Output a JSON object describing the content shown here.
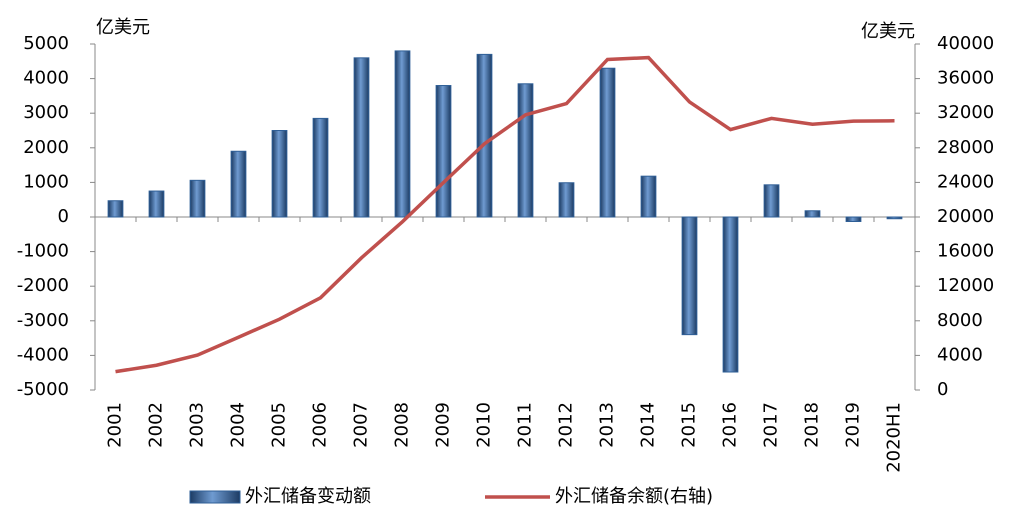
{
  "chart_data": {
    "type": "combo",
    "y_label": "亿美元",
    "y2_label": "亿美元",
    "categories": [
      "2001",
      "2002",
      "2003",
      "2004",
      "2005",
      "2006",
      "2007",
      "2008",
      "2009",
      "2010",
      "2011",
      "2012",
      "2013",
      "2014",
      "2015",
      "2016",
      "2017",
      "2018",
      "2019",
      "2020H1"
    ],
    "series": [
      {
        "name": "外汇储备变动额",
        "type": "bar",
        "color": "#2f5f97",
        "values": [
          470,
          750,
          1060,
          1900,
          2500,
          2850,
          4600,
          4800,
          3800,
          4700,
          3850,
          990,
          4300,
          1180,
          -3400,
          -4480,
          930,
          180,
          -130,
          -50
        ]
      },
      {
        "name": "外汇储备余额(右轴)",
        "type": "line",
        "axis": "y2",
        "color": "#c0504d",
        "values": [
          2122,
          2864,
          4033,
          6099,
          8189,
          10663,
          15282,
          19460,
          23992,
          28473,
          31811,
          33116,
          38213,
          38430,
          33304,
          30105,
          31399,
          30727,
          31079,
          31123
        ]
      }
    ],
    "ylim": [
      -5000,
      5000
    ],
    "yticks": [
      5000,
      4000,
      3000,
      2000,
      1000,
      0,
      -1000,
      -2000,
      -3000,
      -4000,
      -5000
    ],
    "y2lim": [
      0,
      40000
    ],
    "y2ticks": [
      40000,
      36000,
      32000,
      28000,
      24000,
      20000,
      16000,
      12000,
      8000,
      4000,
      0
    ],
    "grid": false
  }
}
